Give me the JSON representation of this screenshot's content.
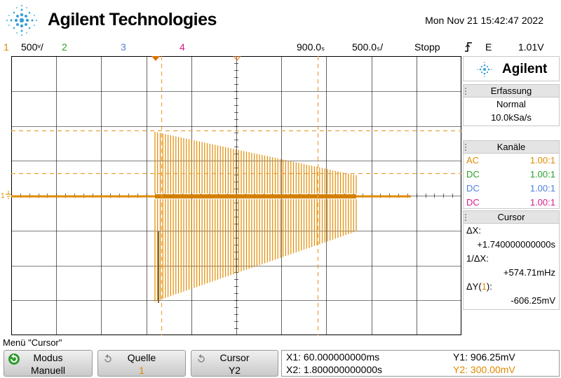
{
  "header": {
    "brand": "Agilent Technologies",
    "datetime": "Mon Nov 21 15:42:47 2022"
  },
  "statusbar": {
    "ch1_num": "1",
    "ch1_scale": "500ᵛ/",
    "ch2_num": "2",
    "ch3_num": "3",
    "ch4_num": "4",
    "time_pos": "900.0ₛ",
    "time_scale": "500.0ₛ/",
    "run_state": "Stopp",
    "trigger_icon": "rising-edge-icon",
    "trigger_mode": "E",
    "trigger_level": "1.01V"
  },
  "colors": {
    "ch1": "#e08a00",
    "ch2": "#2aa02a",
    "ch3": "#4f7fdf",
    "ch4": "#d81b8c",
    "cursor": "#e8a23a",
    "grid": "#000000"
  },
  "side_panel": {
    "logo": "Agilent",
    "acquisition": {
      "title": "Erfassung",
      "mode": "Normal",
      "rate": "10.0kSa/s"
    },
    "channels": {
      "title": "Kanäle",
      "rows": [
        {
          "coupling": "AC",
          "probe": "1.00:1"
        },
        {
          "coupling": "DC",
          "probe": "1.00:1"
        },
        {
          "coupling": "DC",
          "probe": "1.00:1"
        },
        {
          "coupling": "DC",
          "probe": "1.00:1"
        }
      ]
    },
    "cursor": {
      "title": "Cursor",
      "dx_label": "ΔX:",
      "dx_value": "+1.740000000000s",
      "inv_dx_label": "1/ΔX:",
      "inv_dx_value": "+574.71mHz",
      "dy_label_pre": "ΔY(",
      "dy_label_ch": "1",
      "dy_label_post": "):",
      "dy_value": "-606.25mV"
    }
  },
  "menu": {
    "title": "Menü \"Cursor\"",
    "softkeys": [
      {
        "label": "Modus",
        "value": "Manuell"
      },
      {
        "label": "Quelle",
        "value": "1"
      },
      {
        "label": "Cursor",
        "value": "Y2"
      }
    ],
    "readout": {
      "x1": "X1: 60.000000000ms",
      "x2": "X2: 1.800000000000s",
      "y1": "Y1: 906.25mV",
      "y2": "Y2: 300.00mV"
    }
  }
}
